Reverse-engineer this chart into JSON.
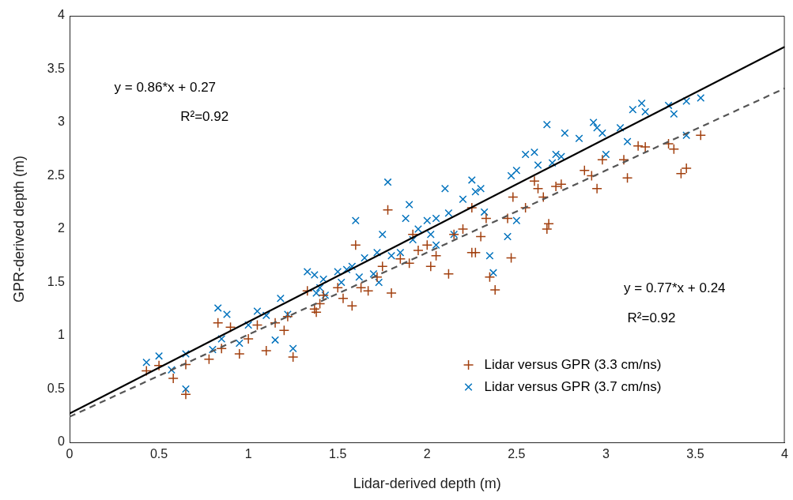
{
  "chart_data": {
    "type": "scatter",
    "xlabel": "Lidar-derived depth (m)",
    "ylabel": "GPR-derived depth (m)",
    "xlim": [
      0,
      4
    ],
    "ylim": [
      0,
      4
    ],
    "xticks": [
      0,
      0.5,
      1,
      1.5,
      2,
      2.5,
      3,
      3.5,
      4
    ],
    "yticks": [
      0,
      0.5,
      1,
      1.5,
      2,
      2.5,
      3,
      3.5,
      4
    ],
    "grid": false,
    "legend": "bottom right",
    "annotations": [
      "y = 0.86*x + 0.27",
      "R²=0.92",
      "y = 0.77*x + 0.24",
      "R²=0.92"
    ],
    "series": [
      {
        "name": "Lidar versus GPR (3.3 cm/ns)",
        "color": "#a2400f",
        "marker": "cross",
        "x": [
          0.43,
          0.5,
          0.58,
          0.65,
          0.65,
          0.78,
          0.83,
          0.85,
          0.9,
          0.95,
          1.0,
          1.05,
          1.1,
          1.15,
          1.2,
          1.22,
          1.25,
          1.33,
          1.37,
          1.4,
          1.42,
          1.5,
          1.53,
          1.58,
          1.6,
          1.63,
          1.67,
          1.72,
          1.75,
          1.78,
          1.8,
          1.85,
          1.9,
          1.92,
          1.95,
          2.0,
          2.02,
          2.05,
          2.12,
          2.15,
          2.2,
          2.25,
          2.27,
          2.3,
          2.33,
          2.35,
          2.38,
          2.45,
          2.47,
          2.48,
          2.55,
          2.6,
          2.65,
          2.67,
          2.68,
          2.72,
          2.75,
          2.88,
          2.92,
          2.95,
          2.98,
          3.1,
          3.12,
          3.18,
          3.22,
          3.35,
          3.38,
          3.42,
          3.45,
          3.53,
          2.25,
          1.38,
          2.62
        ],
        "values": [
          0.67,
          0.72,
          0.6,
          0.45,
          0.73,
          0.78,
          1.12,
          0.88,
          1.08,
          0.83,
          0.97,
          1.1,
          0.86,
          1.12,
          1.05,
          1.18,
          0.8,
          1.42,
          1.25,
          1.3,
          1.38,
          1.45,
          1.35,
          1.28,
          1.85,
          1.45,
          1.42,
          1.55,
          1.65,
          2.18,
          1.4,
          1.72,
          1.68,
          1.95,
          1.8,
          1.85,
          1.65,
          1.75,
          1.58,
          1.95,
          2.0,
          2.2,
          1.78,
          1.93,
          2.1,
          1.55,
          1.43,
          2.1,
          1.73,
          2.3,
          2.2,
          2.45,
          2.3,
          2.0,
          2.05,
          2.4,
          2.42,
          2.55,
          2.5,
          2.38,
          2.65,
          2.65,
          2.48,
          2.78,
          2.77,
          2.8,
          2.75,
          2.52,
          2.57,
          2.88,
          1.78,
          1.22,
          2.38
        ]
      },
      {
        "name": "Lidar versus GPR (3.7 cm/ns)",
        "color": "#0072bd",
        "marker": "x",
        "x": [
          0.43,
          0.5,
          0.57,
          0.65,
          0.65,
          0.8,
          0.83,
          0.85,
          0.88,
          0.95,
          1.0,
          1.05,
          1.1,
          1.15,
          1.18,
          1.22,
          1.25,
          1.33,
          1.37,
          1.38,
          1.4,
          1.42,
          1.5,
          1.52,
          1.55,
          1.58,
          1.6,
          1.62,
          1.65,
          1.7,
          1.72,
          1.75,
          1.78,
          1.8,
          1.85,
          1.88,
          1.9,
          1.92,
          1.95,
          2.0,
          2.02,
          2.05,
          2.1,
          2.12,
          2.15,
          2.2,
          2.25,
          2.27,
          2.3,
          2.32,
          2.35,
          2.37,
          2.45,
          2.47,
          2.5,
          2.55,
          2.6,
          2.62,
          2.67,
          2.7,
          2.72,
          2.75,
          2.77,
          2.85,
          2.93,
          2.95,
          2.98,
          3.0,
          3.08,
          3.12,
          3.15,
          3.2,
          3.22,
          3.35,
          3.38,
          3.45,
          3.53,
          3.45,
          2.5,
          1.73,
          1.43,
          2.05
        ],
        "values": [
          0.75,
          0.81,
          0.68,
          0.5,
          0.83,
          0.87,
          1.26,
          0.97,
          1.2,
          0.93,
          1.1,
          1.23,
          1.19,
          0.96,
          1.35,
          1.2,
          0.88,
          1.6,
          1.57,
          1.4,
          1.45,
          1.53,
          1.6,
          1.5,
          1.62,
          1.65,
          2.08,
          1.55,
          1.73,
          1.58,
          1.78,
          1.95,
          2.44,
          1.75,
          1.78,
          2.1,
          2.23,
          1.9,
          2.0,
          2.08,
          1.95,
          2.1,
          2.38,
          2.15,
          1.95,
          2.28,
          2.46,
          2.35,
          2.38,
          2.16,
          1.75,
          1.59,
          1.93,
          2.5,
          2.55,
          2.7,
          2.72,
          2.6,
          2.98,
          2.62,
          2.7,
          2.68,
          2.9,
          2.85,
          3.0,
          2.95,
          2.9,
          2.7,
          2.95,
          2.82,
          3.12,
          3.18,
          3.1,
          3.16,
          3.08,
          3.2,
          3.23,
          2.88,
          2.08,
          1.5,
          1.38,
          1.85
        ]
      },
      {
        "type": "line",
        "color": "#000000",
        "line_style": "solid",
        "marker": "none",
        "x": [
          0,
          4
        ],
        "values": [
          0.27,
          3.71
        ]
      },
      {
        "type": "line",
        "color": "#555555",
        "line_style": "dashed",
        "marker": "none",
        "x": [
          0,
          4
        ],
        "values": [
          0.24,
          3.32
        ]
      }
    ]
  }
}
